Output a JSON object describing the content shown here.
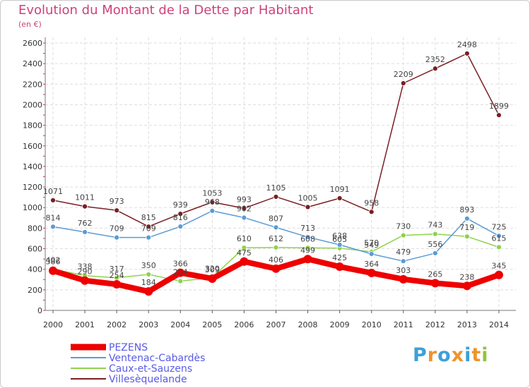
{
  "chart_data": {
    "type": "line",
    "title": "Evolution du Montant de la Dette par Habitant",
    "subtitle": "(en €)",
    "xlabel": "",
    "ylabel": "",
    "ylim": [
      0,
      2600
    ],
    "yticks": [
      0,
      200,
      400,
      600,
      800,
      1000,
      1200,
      1400,
      1600,
      1800,
      2000,
      2200,
      2400,
      2600
    ],
    "x": [
      "2000",
      "2001",
      "2002",
      "2003",
      "2004",
      "2005",
      "2006",
      "2007",
      "2008",
      "2009",
      "2010",
      "2011",
      "2012",
      "2013",
      "2014"
    ],
    "grid": true,
    "legend": "bottom-left",
    "series": [
      {
        "name": "PEZENS",
        "color": "#ee0000",
        "values": [
          386,
          290,
          254,
          184,
          366,
          309,
          475,
          406,
          499,
          425,
          364,
          303,
          265,
          238,
          345
        ]
      },
      {
        "name": "Ventenac-Cabardès",
        "color": "#5b9bd5",
        "values": [
          814,
          762,
          709,
          709,
          816,
          968,
          902,
          807,
          713,
          638,
          549,
          479,
          556,
          893,
          725
        ]
      },
      {
        "name": "Caux-et-Sauzens",
        "color": "#8fd24d",
        "values": [
          402,
          338,
          317,
          350,
          284,
          320,
          610,
          612,
          608,
          605,
          570,
          730,
          743,
          719,
          615
        ]
      },
      {
        "name": "Villesèquelande",
        "color": "#7a1f23",
        "values": [
          1071,
          1011,
          973,
          815,
          939,
          1053,
          993,
          1105,
          1005,
          1091,
          958,
          2209,
          2352,
          2498,
          1899
        ]
      }
    ]
  },
  "logo": {
    "text": "Proxiti",
    "letters": [
      "P",
      "r",
      "o",
      "x",
      "i",
      "t",
      "i"
    ],
    "colors": [
      "#3da0d8",
      "#f0932a",
      "#3da0d8",
      "#f0932a",
      "#3da0d8",
      "#f0932a",
      "#8cc63f"
    ]
  }
}
